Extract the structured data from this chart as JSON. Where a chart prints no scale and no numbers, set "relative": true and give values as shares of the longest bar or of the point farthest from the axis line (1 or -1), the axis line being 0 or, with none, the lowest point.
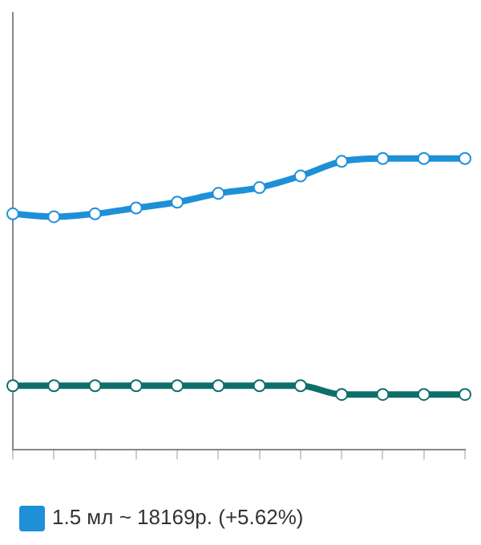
{
  "chart_data": {
    "type": "line",
    "relative": true,
    "categories": [
      null,
      null,
      null,
      null,
      null,
      null,
      null,
      null,
      null,
      null,
      null,
      null
    ],
    "series": [
      {
        "name": "1.5 мл ~ 18169р. (+5.62%)",
        "color": "#1e90d8",
        "values": [
          0.81,
          0.8,
          0.81,
          0.83,
          0.85,
          0.88,
          0.9,
          0.94,
          0.99,
          1,
          1,
          1
        ]
      },
      {
        "color": "#0e6e6a",
        "values": [
          0.22,
          0.22,
          0.22,
          0.22,
          0.22,
          0.22,
          0.22,
          0.22,
          0.19,
          0.19,
          0.19,
          0.19
        ]
      }
    ],
    "legend": "bottom",
    "marker": "circle",
    "line_style": "solid"
  }
}
